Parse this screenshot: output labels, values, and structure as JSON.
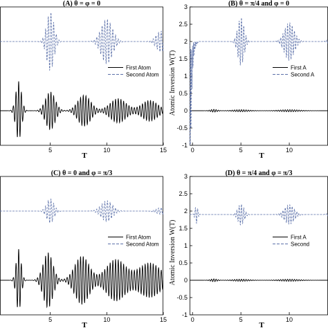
{
  "chart_data": [
    {
      "type": "line",
      "panel": "A",
      "title": "(A) θ = φ = 0",
      "xlabel": "T",
      "ylabel": "",
      "xlim": [
        0,
        15
      ],
      "ylim": [
        -1,
        3
      ],
      "xticks": [
        "5",
        "10",
        "15"
      ],
      "yticks": [],
      "legend": {
        "placement": "right",
        "entries": [
          "First Atom",
          "Second Atom"
        ]
      },
      "series": [
        {
          "name": "First Atom",
          "style": "solid",
          "color": "#000000",
          "baseline": 0,
          "bursts": [
            [
              2.2,
              0.85,
              0.35
            ],
            [
              5.0,
              0.55,
              0.6
            ],
            [
              8.0,
              0.45,
              0.8
            ],
            [
              11.0,
              0.35,
              1.0
            ],
            [
              13.8,
              0.3,
              1.0
            ]
          ]
        },
        {
          "name": "Second Atom",
          "style": "dashed",
          "color": "#5a6fa8",
          "baseline": 2,
          "bursts": [
            [
              5.0,
              0.85,
              0.45
            ],
            [
              10.0,
              0.65,
              0.7
            ],
            [
              14.8,
              0.3,
              0.6
            ]
          ]
        }
      ]
    },
    {
      "type": "line",
      "panel": "B",
      "title": "(B) θ = π/4 and φ = 0",
      "xlabel": "T",
      "ylabel": "Atomic Inversion W(T)",
      "xlim": [
        0,
        15
      ],
      "ylim": [
        -1,
        3
      ],
      "xticks": [
        "0",
        "5",
        "10"
      ],
      "yticks": [
        "-1",
        "-0.5",
        "0",
        "0.5",
        "1",
        "1.5",
        "2",
        "2.5",
        "3"
      ],
      "legend": {
        "placement": "right",
        "entries": [
          "First A",
          "Second A"
        ]
      },
      "series": [
        {
          "name": "First A",
          "style": "solid",
          "color": "#000000",
          "baseline": 0,
          "bursts": [
            [
              2.2,
              0.04,
              0.5
            ],
            [
              5.0,
              0.03,
              1.2
            ],
            [
              10.0,
              0.03,
              1.5
            ]
          ]
        },
        {
          "name": "Second A",
          "style": "dashed",
          "color": "#5a6fa8",
          "baseline": 2,
          "bursts": [
            [
              5.0,
              0.7,
              0.45
            ],
            [
              10.0,
              0.55,
              0.7
            ],
            [
              14.5,
              0.2,
              0.5
            ]
          ],
          "initial_drop": [
            0,
            1.0
          ]
        }
      ]
    },
    {
      "type": "line",
      "panel": "C",
      "title": "(C) θ = 0 and φ = π/3",
      "xlabel": "T",
      "ylabel": "",
      "xlim": [
        0,
        15
      ],
      "ylim": [
        -1,
        3
      ],
      "xticks": [
        "5",
        "10",
        "15"
      ],
      "yticks": [],
      "legend": {
        "placement": "right",
        "entries": [
          "First Atom",
          "Second Atom"
        ]
      },
      "series": [
        {
          "name": "First Atom",
          "style": "solid",
          "color": "#000000",
          "baseline": 0,
          "bursts": [
            [
              2.2,
              0.9,
              0.3
            ],
            [
              4.8,
              0.8,
              0.6
            ],
            [
              7.8,
              0.7,
              0.9
            ],
            [
              10.8,
              0.6,
              1.2
            ],
            [
              13.8,
              0.5,
              1.4
            ]
          ]
        },
        {
          "name": "Second Atom",
          "style": "dashed",
          "color": "#5a6fa8",
          "baseline": 2,
          "bursts": [
            [
              5.0,
              0.35,
              0.45
            ],
            [
              10.0,
              0.3,
              0.7
            ],
            [
              14.8,
              0.1,
              0.6
            ]
          ]
        }
      ]
    },
    {
      "type": "line",
      "panel": "D",
      "title": "(D) θ = π/4 and φ = π/3",
      "xlabel": "T",
      "ylabel": "Atomic Inversion W(T)",
      "xlim": [
        0,
        15
      ],
      "ylim": [
        -1,
        3
      ],
      "xticks": [
        "0",
        "5",
        "10"
      ],
      "yticks": [
        "-1",
        "-0.5",
        "0",
        "0.5",
        "1",
        "1.5",
        "2",
        "2.5",
        "3"
      ],
      "legend": {
        "placement": "right",
        "entries": [
          "First A",
          "Second"
        ]
      },
      "series": [
        {
          "name": "First A",
          "style": "solid",
          "color": "#000000",
          "baseline": 0,
          "bursts": [
            [
              2.2,
              0.04,
              0.5
            ],
            [
              5.0,
              0.03,
              1.2
            ],
            [
              10.0,
              0.03,
              1.5
            ]
          ]
        },
        {
          "name": "Second",
          "style": "dashed",
          "color": "#5a6fa8",
          "baseline": 1.9,
          "bursts": [
            [
              0.4,
              0.25,
              0.2
            ],
            [
              5.0,
              0.3,
              0.45
            ],
            [
              10.0,
              0.28,
              0.7
            ],
            [
              14.5,
              0.12,
              0.5
            ]
          ]
        }
      ]
    }
  ]
}
